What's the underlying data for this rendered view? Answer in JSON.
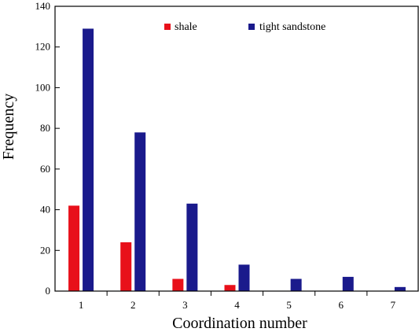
{
  "chart_data": {
    "type": "bar",
    "categories": [
      "1",
      "2",
      "3",
      "4",
      "5",
      "6",
      "7"
    ],
    "series": [
      {
        "name": "shale",
        "values": [
          42,
          24,
          6,
          3,
          0,
          0,
          0
        ],
        "color": "#e8101a"
      },
      {
        "name": "tight sandstone",
        "values": [
          129,
          78,
          43,
          13,
          6,
          7,
          2
        ],
        "color": "#1a1a8c"
      }
    ],
    "title": "",
    "xlabel": "Coordination number",
    "ylabel": "Frequency",
    "ylim": [
      0,
      140
    ],
    "yticks": [
      0,
      20,
      40,
      60,
      80,
      100,
      120,
      140
    ],
    "grid": false,
    "legend_position": "top"
  }
}
